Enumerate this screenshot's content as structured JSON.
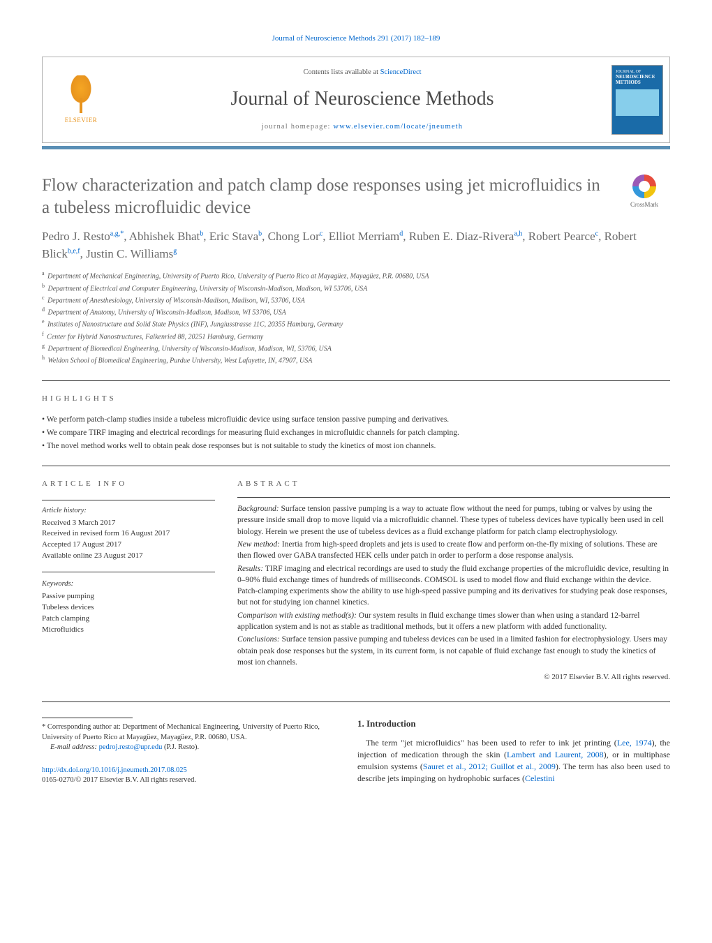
{
  "journal_ref": "Journal of Neuroscience Methods 291 (2017) 182–189",
  "header": {
    "publisher": "ELSEVIER",
    "contents_prefix": "Contents lists available at ",
    "contents_link": "ScienceDirect",
    "journal_title": "Journal of Neuroscience Methods",
    "homepage_prefix": "journal homepage: ",
    "homepage_url": "www.elsevier.com/locate/jneumeth",
    "cover_label_top": "JOURNAL OF",
    "cover_label_main": "NEUROSCIENCE METHODS"
  },
  "crossmark_label": "CrossMark",
  "article_title": "Flow characterization and patch clamp dose responses using jet microfluidics in a tubeless microfluidic device",
  "authors_html": "Pedro J. Resto<sup>a,g,*</sup>, Abhishek Bhat<sup>b</sup>, Eric Stava<sup>b</sup>, Chong Lor<sup>c</sup>, Elliot Merriam<sup>d</sup>, Ruben E. Diaz-Rivera<sup>a,h</sup>, Robert Pearce<sup>c</sup>, Robert Blick<sup>b,e,f</sup>, Justin C. Williams<sup>g</sup>",
  "affiliations": [
    {
      "key": "a",
      "text": "Department of Mechanical Engineering, University of Puerto Rico, University of Puerto Rico at Mayagüez, Mayagüez, P.R. 00680, USA"
    },
    {
      "key": "b",
      "text": "Department of Electrical and Computer Engineering, University of Wisconsin-Madison, Madison, WI 53706, USA"
    },
    {
      "key": "c",
      "text": "Department of Anesthesiology, University of Wisconsin-Madison, Madison, WI, 53706, USA"
    },
    {
      "key": "d",
      "text": "Department of Anatomy, University of Wisconsin-Madison, Madison, WI 53706, USA"
    },
    {
      "key": "e",
      "text": "Institutes of Nanostructure and Solid State Physics (INF), Jungiusstrasse 11C, 20355 Hamburg, Germany"
    },
    {
      "key": "f",
      "text": "Center for Hybrid Nanostructures, Falkenried 88, 20251 Hamburg, Germany"
    },
    {
      "key": "g",
      "text": "Department of Biomedical Engineering, University of Wisconsin-Madison, Madison, WI, 53706, USA"
    },
    {
      "key": "h",
      "text": "Weldon School of Biomedical Engineering, Purdue University, West Lafayette, IN, 47907, USA"
    }
  ],
  "highlights_label": "HIGHLIGHTS",
  "highlights": [
    "We perform patch-clamp studies inside a tubeless microfluidic device using surface tension passive pumping and derivatives.",
    "We compare TIRF imaging and electrical recordings for measuring fluid exchanges in microfluidic channels for patch clamping.",
    "The novel method works well to obtain peak dose responses but is not suitable to study the kinetics of most ion channels."
  ],
  "article_info": {
    "label": "ARTICLE INFO",
    "history_head": "Article history:",
    "history": [
      "Received 3 March 2017",
      "Received in revised form 16 August 2017",
      "Accepted 17 August 2017",
      "Available online 23 August 2017"
    ],
    "keywords_head": "Keywords:",
    "keywords": [
      "Passive pumping",
      "Tubeless devices",
      "Patch clamping",
      "Microfluidics"
    ]
  },
  "abstract": {
    "label": "ABSTRACT",
    "sections": [
      {
        "head": "Background:",
        "body": "Surface tension passive pumping is a way to actuate flow without the need for pumps, tubing or valves by using the pressure inside small drop to move liquid via a microfluidic channel. These types of tubeless devices have typically been used in cell biology. Herein we present the use of tubeless devices as a fluid exchange platform for patch clamp electrophysiology."
      },
      {
        "head": "New method:",
        "body": "Inertia from high-speed droplets and jets is used to create flow and perform on-the-fly mixing of solutions. These are then flowed over GABA transfected HEK cells under patch in order to perform a dose response analysis."
      },
      {
        "head": "Results:",
        "body": "TIRF imaging and electrical recordings are used to study the fluid exchange properties of the microfluidic device, resulting in 0–90% fluid exchange times of hundreds of milliseconds. COMSOL is used to model flow and fluid exchange within the device. Patch-clamping experiments show the ability to use high-speed passive pumping and its derivatives for studying peak dose responses, but not for studying ion channel kinetics."
      },
      {
        "head": "Comparison with existing method(s):",
        "body": "Our system results in fluid exchange times slower than when using a standard 12-barrel application system and is not as stable as traditional methods, but it offers a new platform with added functionality."
      },
      {
        "head": "Conclusions:",
        "body": "Surface tension passive pumping and tubeless devices can be used in a limited fashion for electrophysiology. Users may obtain peak dose responses but the system, in its current form, is not capable of fluid exchange fast enough to study the kinetics of most ion channels."
      }
    ],
    "copyright": "© 2017 Elsevier B.V. All rights reserved."
  },
  "intro": {
    "heading": "1.  Introduction",
    "body_html": "The term \"jet microfluidics\" has been used to refer to ink jet printing (<span class='cite'>Lee, 1974</span>), the injection of medication through the skin (<span class='cite'>Lambert and Laurent, 2008</span>), or in multiphase emulsion systems (<span class='cite'>Sauret et al., 2012; Guillot et al., 2009</span>). The term has also been used to describe jets impinging on hydrophobic surfaces (<span class='cite'>Celestini</span>"
  },
  "footnote": {
    "corr_label": "* Corresponding author at: Department of Mechanical Engineering, University of Puerto Rico, University of Puerto Rico at Mayagüez, Mayagüez, P.R. 00680, USA.",
    "email_prefix": "E-mail address: ",
    "email": "pedroj.resto@upr.edu",
    "email_suffix": " (P.J. Resto)."
  },
  "doi": {
    "url": "http://dx.doi.org/10.1016/j.jneumeth.2017.08.025",
    "issn_line": "0165-0270/© 2017 Elsevier B.V. All rights reserved."
  },
  "colors": {
    "link": "#0066cc",
    "text": "#333333",
    "title_gray": "#6a6a6a",
    "elsevier_orange": "#e8941e",
    "header_bar": "#5a8fb5",
    "cover_blue": "#1a6ba8"
  }
}
